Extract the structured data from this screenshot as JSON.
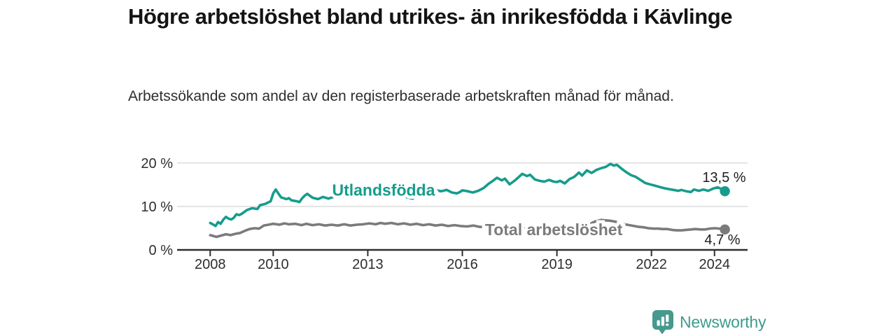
{
  "header": {
    "title": "Högre arbetslöshet bland utrikes- än inrikesfödda i Kävlinge",
    "subtitle": "Arbetssökande som andel av den registerbaserade arbetskraften månad för månad."
  },
  "branding": {
    "logo_text": "Newsworthy",
    "logo_icon": "newsworthy-barchart-pin-icon",
    "icon_color": "#46998c",
    "text_color": "#3e9b8d"
  },
  "colors": {
    "title": "#141414",
    "axis_text": "#2e2e2e",
    "gridline": "#d8d8d8",
    "axis_line": "#2e2e2e",
    "background": "#ffffff"
  },
  "chart_data": {
    "type": "line",
    "title": "Högre arbetslöshet bland utrikes- än inrikesfödda i Kävlinge",
    "subtitle": "Arbetssökande som andel av den registerbaserade arbetskraften månad för månad.",
    "unit": "%",
    "grid": "horizontal-only",
    "legend_position": "inline-labels",
    "x_range": [
      2006.95,
      2025.05
    ],
    "y_range": [
      0,
      21.1
    ],
    "x_ticks": [
      {
        "year": 2008,
        "label": "2008"
      },
      {
        "year": 2010,
        "label": "2010"
      },
      {
        "year": 2013,
        "label": "2013"
      },
      {
        "year": 2016,
        "label": "2016"
      },
      {
        "year": 2019,
        "label": "2019"
      },
      {
        "year": 2022,
        "label": "2022"
      },
      {
        "year": 2024,
        "label": "2024"
      }
    ],
    "y_ticks": [
      {
        "value": 0,
        "label": "0 %"
      },
      {
        "value": 10,
        "label": "10 %"
      },
      {
        "value": 20,
        "label": "20 %"
      }
    ],
    "series": [
      {
        "name": "Utlandsfödda",
        "color": "#169c8c",
        "end_value": 13.5,
        "end_label": "13,5 %",
        "label_at": [
          2013.5,
          13.8
        ],
        "points": [
          [
            2008.0,
            6.2
          ],
          [
            2008.08,
            5.9
          ],
          [
            2008.17,
            5.5
          ],
          [
            2008.25,
            6.4
          ],
          [
            2008.33,
            6.0
          ],
          [
            2008.42,
            7.0
          ],
          [
            2008.5,
            7.6
          ],
          [
            2008.58,
            7.2
          ],
          [
            2008.67,
            7.0
          ],
          [
            2008.75,
            7.4
          ],
          [
            2008.83,
            8.2
          ],
          [
            2008.92,
            8.0
          ],
          [
            2009.0,
            8.3
          ],
          [
            2009.17,
            9.2
          ],
          [
            2009.33,
            9.6
          ],
          [
            2009.5,
            9.4
          ],
          [
            2009.58,
            10.3
          ],
          [
            2009.75,
            10.6
          ],
          [
            2009.92,
            11.2
          ],
          [
            2010.0,
            13.0
          ],
          [
            2010.08,
            13.9
          ],
          [
            2010.17,
            12.9
          ],
          [
            2010.25,
            12.1
          ],
          [
            2010.42,
            11.7
          ],
          [
            2010.5,
            11.9
          ],
          [
            2010.58,
            11.4
          ],
          [
            2010.75,
            11.2
          ],
          [
            2010.83,
            11.0
          ],
          [
            2010.92,
            11.9
          ],
          [
            2011.0,
            12.5
          ],
          [
            2011.08,
            12.9
          ],
          [
            2011.25,
            12.0
          ],
          [
            2011.42,
            11.7
          ],
          [
            2011.58,
            12.2
          ],
          [
            2011.75,
            11.8
          ],
          [
            2011.92,
            12.2
          ],
          [
            2012.08,
            12.5
          ],
          [
            2012.25,
            12.3
          ],
          [
            2012.42,
            13.0
          ],
          [
            2012.58,
            13.9
          ],
          [
            2012.75,
            14.5
          ],
          [
            2012.92,
            13.9
          ],
          [
            2013.08,
            13.5
          ],
          [
            2013.25,
            13.8
          ],
          [
            2013.42,
            13.3
          ],
          [
            2013.58,
            12.9
          ],
          [
            2013.75,
            13.2
          ],
          [
            2013.92,
            12.9
          ],
          [
            2014.08,
            12.6
          ],
          [
            2014.25,
            12.1
          ],
          [
            2014.42,
            11.8
          ],
          [
            2014.58,
            12.5
          ],
          [
            2014.75,
            13.2
          ],
          [
            2014.92,
            13.9
          ],
          [
            2015.0,
            14.2
          ],
          [
            2015.17,
            13.7
          ],
          [
            2015.33,
            13.5
          ],
          [
            2015.5,
            13.8
          ],
          [
            2015.67,
            13.2
          ],
          [
            2015.83,
            13.0
          ],
          [
            2015.92,
            13.3
          ],
          [
            2016.0,
            13.7
          ],
          [
            2016.17,
            13.5
          ],
          [
            2016.33,
            13.2
          ],
          [
            2016.5,
            13.6
          ],
          [
            2016.67,
            14.2
          ],
          [
            2016.83,
            15.2
          ],
          [
            2016.97,
            15.9
          ],
          [
            2017.1,
            16.6
          ],
          [
            2017.25,
            16.0
          ],
          [
            2017.35,
            16.4
          ],
          [
            2017.5,
            15.1
          ],
          [
            2017.67,
            16.0
          ],
          [
            2017.9,
            17.5
          ],
          [
            2018.05,
            17.0
          ],
          [
            2018.15,
            17.3
          ],
          [
            2018.3,
            16.2
          ],
          [
            2018.45,
            15.9
          ],
          [
            2018.6,
            15.7
          ],
          [
            2018.75,
            16.1
          ],
          [
            2018.9,
            15.7
          ],
          [
            2019.0,
            15.6
          ],
          [
            2019.1,
            15.9
          ],
          [
            2019.25,
            15.3
          ],
          [
            2019.4,
            16.3
          ],
          [
            2019.55,
            16.8
          ],
          [
            2019.7,
            17.8
          ],
          [
            2019.8,
            17.1
          ],
          [
            2019.95,
            18.3
          ],
          [
            2020.1,
            17.7
          ],
          [
            2020.25,
            18.4
          ],
          [
            2020.4,
            18.8
          ],
          [
            2020.55,
            19.1
          ],
          [
            2020.7,
            19.8
          ],
          [
            2020.8,
            19.4
          ],
          [
            2020.9,
            19.6
          ],
          [
            2021.05,
            18.7
          ],
          [
            2021.2,
            17.9
          ],
          [
            2021.35,
            17.2
          ],
          [
            2021.5,
            16.8
          ],
          [
            2021.65,
            16.1
          ],
          [
            2021.8,
            15.4
          ],
          [
            2021.95,
            15.1
          ],
          [
            2022.1,
            14.8
          ],
          [
            2022.25,
            14.5
          ],
          [
            2022.4,
            14.2
          ],
          [
            2022.55,
            14.0
          ],
          [
            2022.7,
            13.8
          ],
          [
            2022.85,
            13.6
          ],
          [
            2022.95,
            13.8
          ],
          [
            2023.1,
            13.5
          ],
          [
            2023.25,
            13.3
          ],
          [
            2023.35,
            13.9
          ],
          [
            2023.5,
            13.6
          ],
          [
            2023.65,
            13.9
          ],
          [
            2023.8,
            13.6
          ],
          [
            2023.95,
            14.1
          ],
          [
            2024.1,
            14.4
          ],
          [
            2024.2,
            14.1
          ],
          [
            2024.33,
            13.5
          ]
        ]
      },
      {
        "name": "Total arbetslöshet",
        "color": "#7b7b7e",
        "end_value": 4.7,
        "end_label": "4,7 %",
        "label_at": [
          2018.9,
          4.65
        ],
        "points": [
          [
            2008.0,
            3.4
          ],
          [
            2008.1,
            3.2
          ],
          [
            2008.2,
            3.0
          ],
          [
            2008.35,
            3.3
          ],
          [
            2008.5,
            3.6
          ],
          [
            2008.65,
            3.4
          ],
          [
            2008.8,
            3.7
          ],
          [
            2008.95,
            3.9
          ],
          [
            2009.1,
            4.4
          ],
          [
            2009.25,
            4.8
          ],
          [
            2009.4,
            5.0
          ],
          [
            2009.55,
            4.9
          ],
          [
            2009.7,
            5.6
          ],
          [
            2009.85,
            5.8
          ],
          [
            2010.0,
            6.0
          ],
          [
            2010.2,
            5.8
          ],
          [
            2010.35,
            6.1
          ],
          [
            2010.5,
            5.9
          ],
          [
            2010.7,
            6.0
          ],
          [
            2010.9,
            5.7
          ],
          [
            2011.05,
            6.0
          ],
          [
            2011.25,
            5.7
          ],
          [
            2011.45,
            5.9
          ],
          [
            2011.65,
            5.6
          ],
          [
            2011.85,
            5.8
          ],
          [
            2012.05,
            5.6
          ],
          [
            2012.25,
            5.9
          ],
          [
            2012.45,
            5.6
          ],
          [
            2012.65,
            5.8
          ],
          [
            2012.85,
            5.9
          ],
          [
            2013.05,
            6.1
          ],
          [
            2013.25,
            5.9
          ],
          [
            2013.4,
            6.2
          ],
          [
            2013.55,
            6.0
          ],
          [
            2013.75,
            6.2
          ],
          [
            2013.95,
            5.9
          ],
          [
            2014.15,
            6.1
          ],
          [
            2014.35,
            5.8
          ],
          [
            2014.55,
            6.0
          ],
          [
            2014.75,
            5.7
          ],
          [
            2014.95,
            5.9
          ],
          [
            2015.15,
            5.6
          ],
          [
            2015.35,
            5.8
          ],
          [
            2015.55,
            5.5
          ],
          [
            2015.75,
            5.7
          ],
          [
            2015.95,
            5.5
          ],
          [
            2016.15,
            5.4
          ],
          [
            2016.35,
            5.6
          ],
          [
            2016.55,
            5.3
          ],
          [
            2016.75,
            5.2
          ],
          [
            2017.0,
            5.1
          ],
          [
            2017.3,
            5.0
          ],
          [
            2017.6,
            4.9
          ],
          [
            2017.9,
            5.0
          ],
          [
            2018.2,
            4.9
          ],
          [
            2018.5,
            4.8
          ],
          [
            2018.8,
            4.9
          ],
          [
            2019.1,
            5.0
          ],
          [
            2019.4,
            5.1
          ],
          [
            2019.7,
            5.2
          ],
          [
            2019.95,
            5.6
          ],
          [
            2020.2,
            6.5
          ],
          [
            2020.4,
            6.9
          ],
          [
            2020.55,
            6.8
          ],
          [
            2020.7,
            6.7
          ],
          [
            2020.85,
            6.5
          ],
          [
            2021.0,
            6.1
          ],
          [
            2021.15,
            5.9
          ],
          [
            2021.3,
            5.7
          ],
          [
            2021.45,
            5.5
          ],
          [
            2021.6,
            5.3
          ],
          [
            2021.75,
            5.2
          ],
          [
            2021.9,
            5.0
          ],
          [
            2022.05,
            4.9
          ],
          [
            2022.2,
            4.9
          ],
          [
            2022.35,
            4.8
          ],
          [
            2022.5,
            4.8
          ],
          [
            2022.65,
            4.6
          ],
          [
            2022.8,
            4.5
          ],
          [
            2022.95,
            4.5
          ],
          [
            2023.1,
            4.6
          ],
          [
            2023.25,
            4.7
          ],
          [
            2023.4,
            4.8
          ],
          [
            2023.55,
            4.7
          ],
          [
            2023.7,
            4.7
          ],
          [
            2023.85,
            4.9
          ],
          [
            2024.0,
            5.0
          ],
          [
            2024.15,
            4.9
          ],
          [
            2024.33,
            4.7
          ]
        ]
      }
    ]
  }
}
